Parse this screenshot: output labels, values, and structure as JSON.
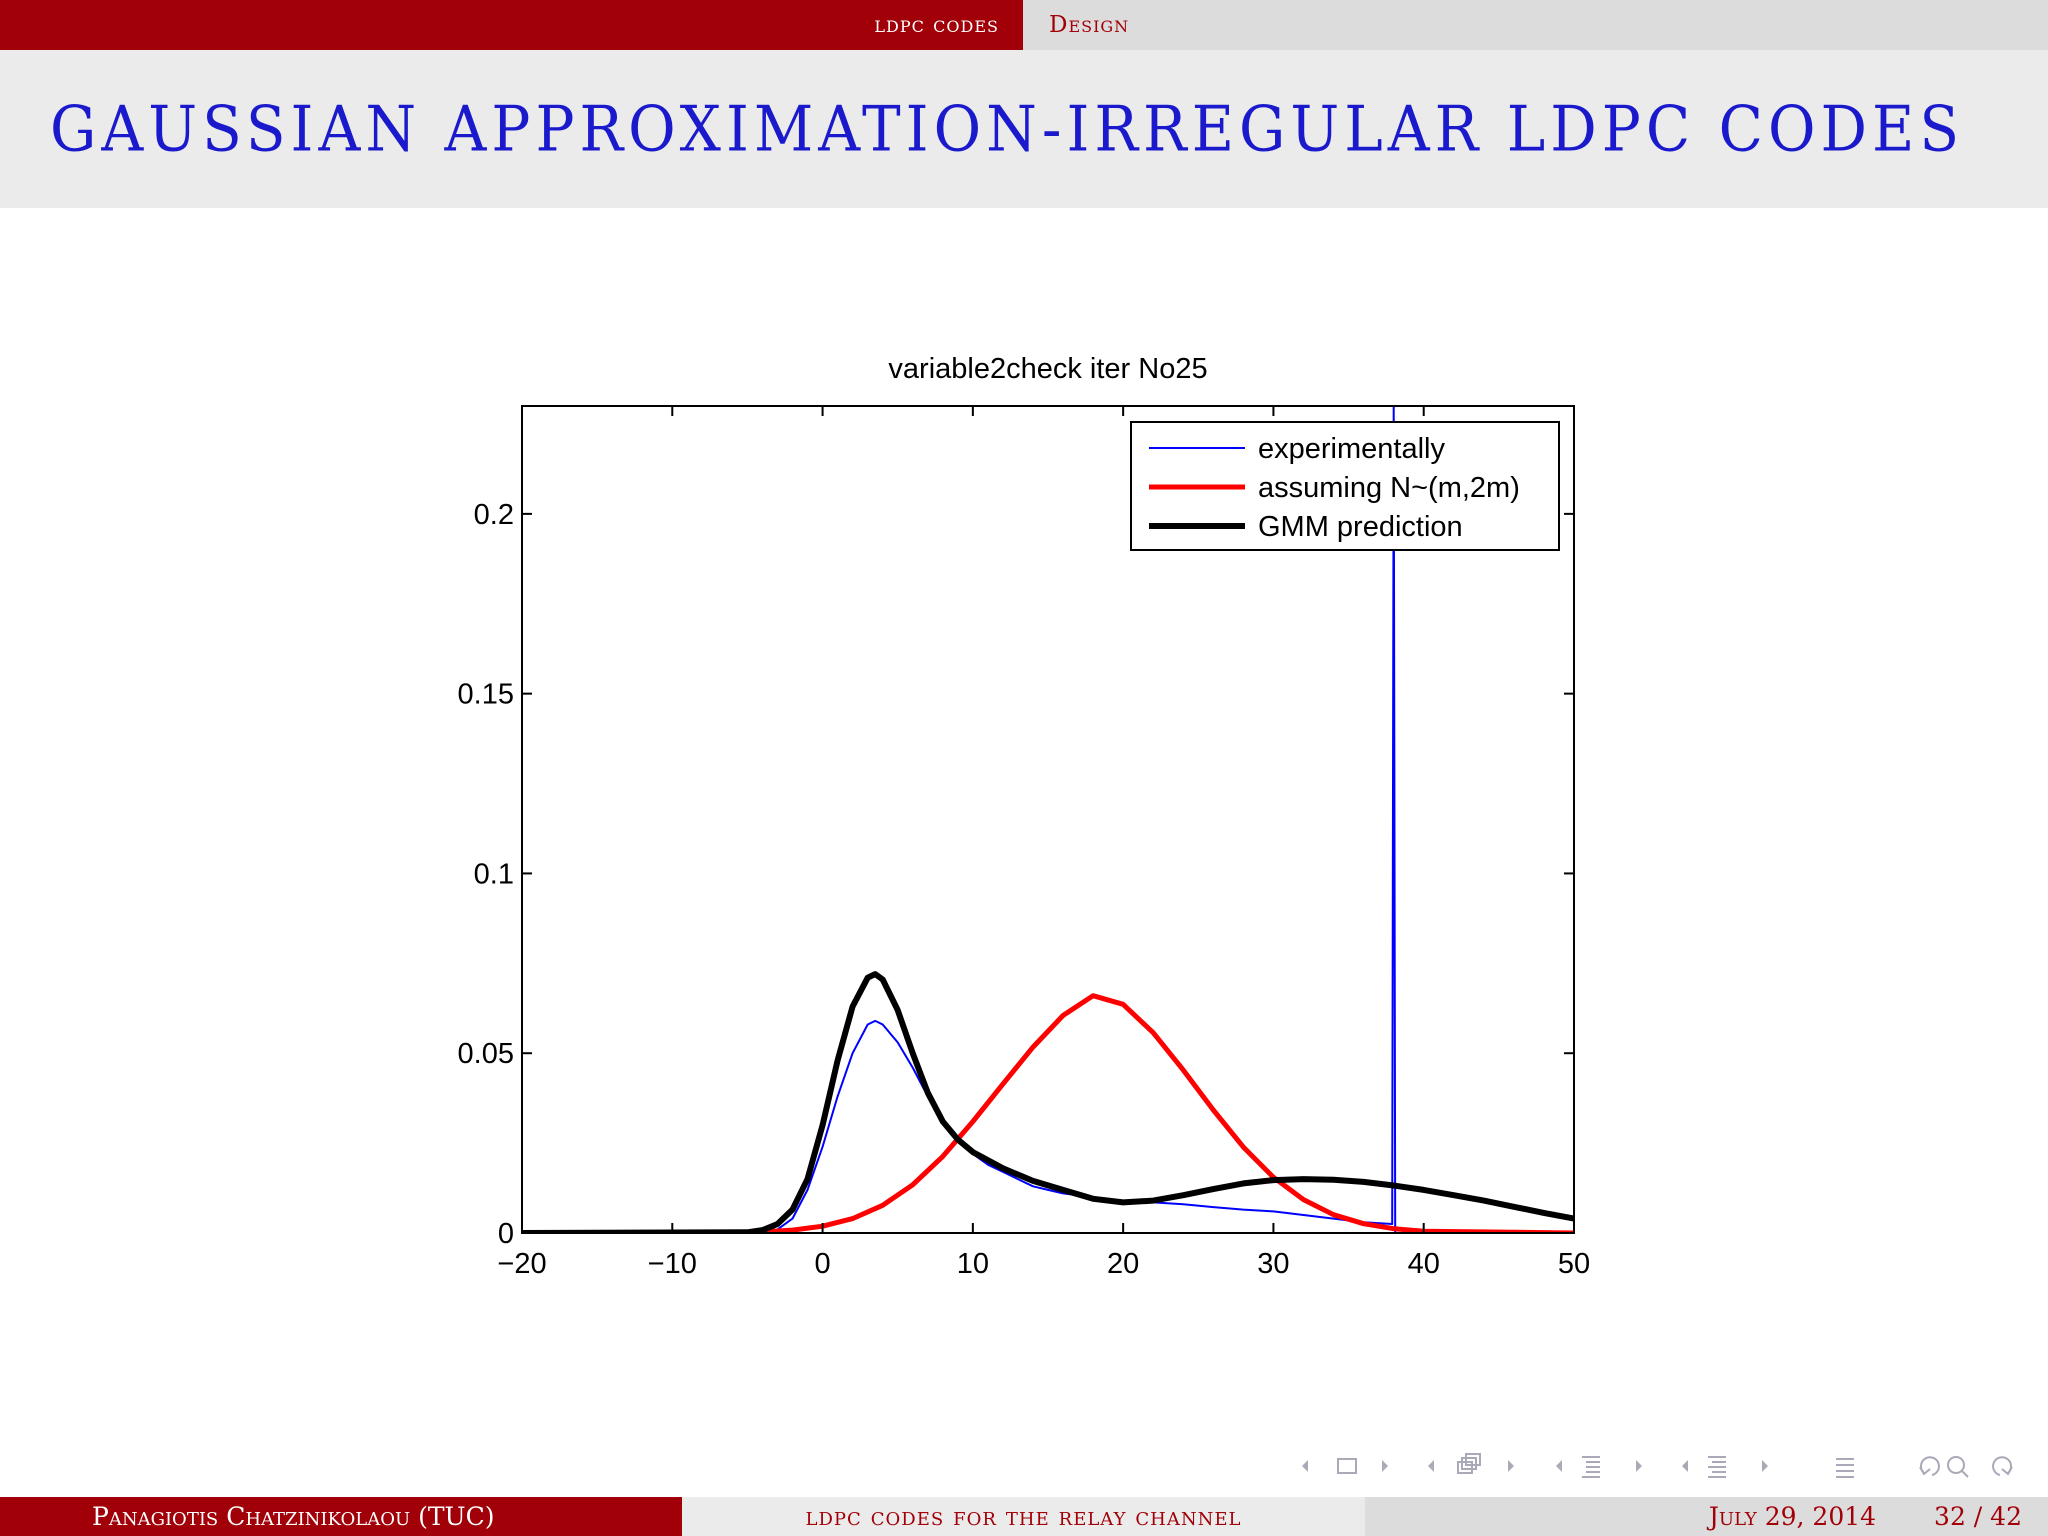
{
  "header": {
    "section": "ldpc codes",
    "subsection": "Design"
  },
  "slide": {
    "title": "Gaussian approximation-irregular LDPC codes"
  },
  "footer": {
    "author": "Panagiotis Chatzinikolaou (TUC)",
    "talk": "ldpc codes for the relay channel",
    "date": "July 29, 2014",
    "page": "32 / 42"
  },
  "nav_icons": [
    "frame-prev-icon",
    "frame-icon",
    "frame-next-icon",
    "subsection-prev-icon",
    "subsection-icon",
    "subsection-next-icon",
    "section-prev-icon",
    "section-icon",
    "section-next-icon",
    "document-prev-icon",
    "document-icon",
    "document-next-icon",
    "toc-icon",
    "undo-icon",
    "search-icon",
    "redo-icon"
  ],
  "chart_data": {
    "type": "line",
    "title": "variable2check iter No25",
    "xlabel": "",
    "ylabel": "",
    "xlim": [
      -20,
      50
    ],
    "ylim": [
      0,
      0.23
    ],
    "xticks": [
      -20,
      -10,
      0,
      10,
      20,
      30,
      40,
      50
    ],
    "xtick_labels": [
      "−20",
      "−10",
      "0",
      "10",
      "20",
      "30",
      "40",
      "50"
    ],
    "yticks": [
      0,
      0.05,
      0.1,
      0.15,
      0.2
    ],
    "ytick_labels": [
      "0",
      "0.05",
      "0.1",
      "0.15",
      "0.2"
    ],
    "grid": false,
    "legend_position": "top-right",
    "series": [
      {
        "name": "experimentally",
        "color": "#0000ff",
        "x": [
          -3.5,
          -3,
          -2,
          -1,
          0,
          1,
          2,
          3,
          3.5,
          4,
          5,
          6,
          7,
          8,
          9,
          10,
          11,
          12,
          13,
          14,
          15,
          16,
          17,
          18,
          19,
          20,
          22,
          24,
          26,
          28,
          30,
          32,
          34,
          36,
          37.9,
          38,
          38.1
        ],
        "y": [
          0,
          0.001,
          0.004,
          0.012,
          0.024,
          0.038,
          0.05,
          0.058,
          0.059,
          0.058,
          0.053,
          0.046,
          0.038,
          0.031,
          0.026,
          0.022,
          0.019,
          0.017,
          0.015,
          0.013,
          0.012,
          0.011,
          0.0105,
          0.01,
          0.0095,
          0.009,
          0.0085,
          0.008,
          0.0072,
          0.0065,
          0.006,
          0.005,
          0.004,
          0.003,
          0.0025,
          0.23,
          0
        ]
      },
      {
        "name": "assuming N~(m,2m)",
        "color": "#ff0000",
        "x": [
          -20,
          -5,
          -4,
          -2,
          0,
          2,
          4,
          6,
          8,
          10,
          12,
          14,
          16,
          18,
          20,
          22,
          24,
          26,
          28,
          30,
          32,
          34,
          36,
          38,
          40,
          50
        ],
        "y": [
          0,
          0,
          0.0003,
          0.0008,
          0.0019,
          0.004,
          0.0077,
          0.0134,
          0.0213,
          0.031,
          0.0414,
          0.0517,
          0.0605,
          0.066,
          0.0636,
          0.0557,
          0.0453,
          0.0342,
          0.0239,
          0.0155,
          0.0093,
          0.0051,
          0.0026,
          0.0012,
          0.0005,
          0
        ]
      },
      {
        "name": "GMM prediction",
        "color": "#000000",
        "x": [
          -20,
          -5,
          -4,
          -3,
          -2,
          -1,
          0,
          1,
          2,
          3,
          3.5,
          4,
          5,
          6,
          7,
          8,
          9,
          10,
          12,
          14,
          16,
          18,
          20,
          22,
          24,
          26,
          28,
          30,
          32,
          34,
          36,
          38,
          40,
          42,
          44,
          46,
          48,
          50
        ],
        "y": [
          0,
          0.0002,
          0.0008,
          0.0025,
          0.0065,
          0.015,
          0.03,
          0.048,
          0.063,
          0.071,
          0.072,
          0.0705,
          0.062,
          0.05,
          0.039,
          0.031,
          0.026,
          0.0225,
          0.018,
          0.0145,
          0.012,
          0.0095,
          0.0085,
          0.009,
          0.0105,
          0.0122,
          0.0138,
          0.0147,
          0.015,
          0.0148,
          0.0142,
          0.0132,
          0.012,
          0.0105,
          0.009,
          0.0073,
          0.0056,
          0.004
        ]
      }
    ]
  }
}
